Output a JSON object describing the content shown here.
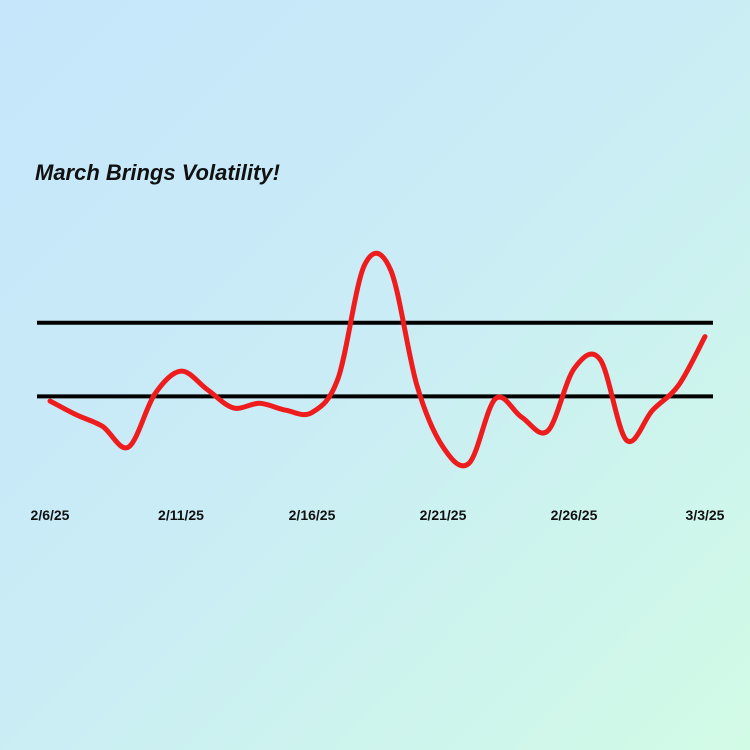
{
  "chart_data": {
    "type": "line",
    "title": "March Brings Volatility!",
    "categories": [
      "2/6/25",
      null,
      null,
      null,
      null,
      "2/11/25",
      null,
      null,
      null,
      null,
      "2/16/25",
      null,
      null,
      null,
      null,
      "2/21/25",
      null,
      null,
      null,
      null,
      "2/26/25",
      null,
      null,
      null,
      null,
      "3/3/25"
    ],
    "series": [
      {
        "color": "#ee1c1c",
        "values": [
          30,
          24,
          19,
          10,
          33,
          43,
          35,
          27,
          29,
          26,
          25,
          40,
          89,
          87,
          37,
          10,
          3,
          31,
          23,
          17,
          44,
          48,
          13,
          26,
          37,
          58
        ]
      }
    ],
    "ylim": [
      0,
      100
    ],
    "reference_lines": [
      {
        "value": 64,
        "color": "#000000"
      },
      {
        "value": 32,
        "color": "#000000"
      }
    ]
  }
}
